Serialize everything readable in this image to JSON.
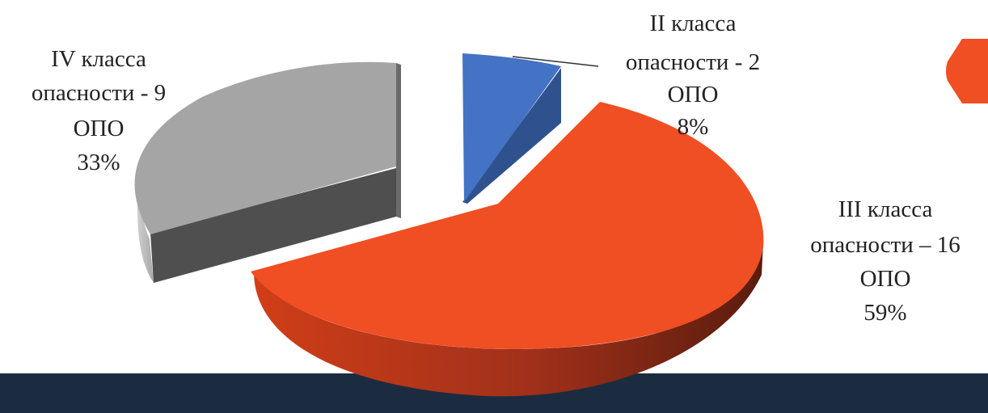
{
  "chart_data": {
    "type": "pie",
    "style": "3d-exploded",
    "title": "",
    "slices": [
      {
        "name": "II класса опасности - 2 ОПО",
        "label_lines": [
          "II класса",
          "опасности - 2",
          "ОПО"
        ],
        "percent_label": "8%",
        "value": 2,
        "percent": 8,
        "color": "#4472C4"
      },
      {
        "name": "III класса опасности – 16 ОПО",
        "label_lines": [
          "III класса",
          "опасности – 16",
          "ОПО"
        ],
        "percent_label": "59%",
        "value": 16,
        "percent": 59,
        "color": "#F04E23"
      },
      {
        "name": "IV класса опасности - 9 ОПО",
        "label_lines": [
          "IV класса",
          "опасности - 9",
          "ОПО"
        ],
        "percent_label": "33%",
        "value": 9,
        "percent": 33,
        "color": "#A5A5A5"
      }
    ],
    "legend": "none"
  },
  "theme": {
    "bar_color": "#1B2C40",
    "accent_color": "#F04E23"
  }
}
